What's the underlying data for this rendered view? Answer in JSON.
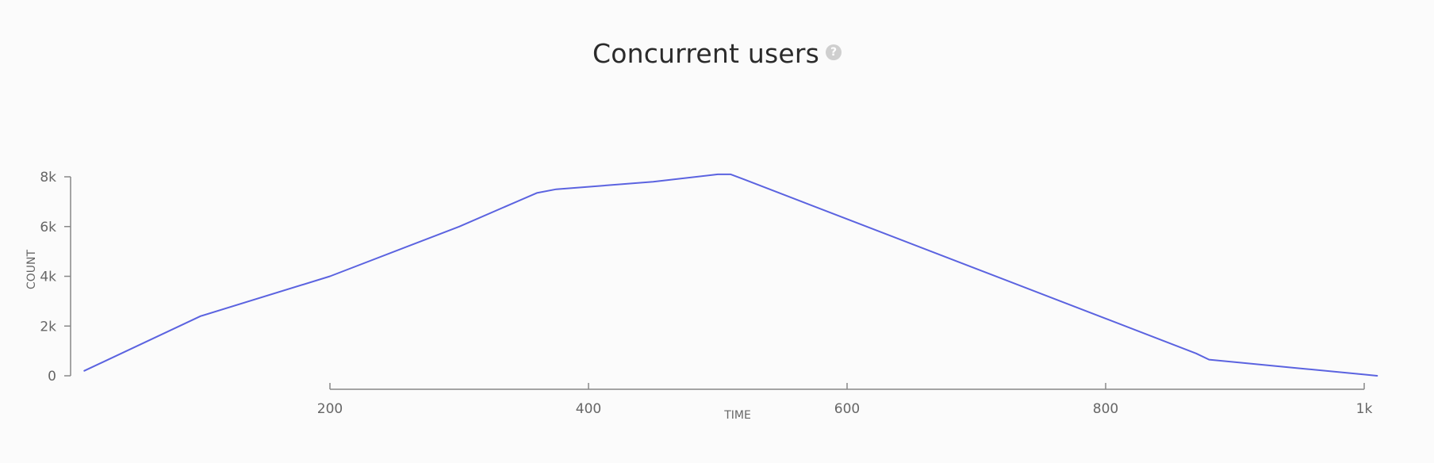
{
  "header": {
    "title": "Concurrent users",
    "help_icon": "question-circle-icon"
  },
  "colors": {
    "series": "#5b63e0",
    "axis": "#888888",
    "background": "#fbfbfb"
  },
  "chart_data": {
    "type": "line",
    "title": "Concurrent users",
    "xlabel": "TIME",
    "ylabel": "COUNT",
    "xlim": [
      0,
      1010
    ],
    "ylim": [
      0,
      8000
    ],
    "x_ticks": [
      200,
      400,
      600,
      800,
      1000
    ],
    "x_tick_labels": [
      "200",
      "400",
      "600",
      "800",
      "1k"
    ],
    "y_ticks": [
      0,
      2000,
      4000,
      6000,
      8000
    ],
    "y_tick_labels": [
      "0",
      "2k",
      "4k",
      "6k",
      "8k"
    ],
    "grid": false,
    "legend": "none",
    "series": [
      {
        "x": [
          10,
          100,
          200,
          300,
          360,
          375,
          400,
          450,
          500,
          510,
          520,
          600,
          700,
          800,
          870,
          880,
          900,
          950,
          1000,
          1010
        ],
        "y": [
          200,
          2400,
          4000,
          6000,
          7350,
          7500,
          7600,
          7800,
          8100,
          8100,
          7900,
          6300,
          4300,
          2300,
          900,
          650,
          550,
          300,
          50,
          0
        ]
      }
    ]
  }
}
